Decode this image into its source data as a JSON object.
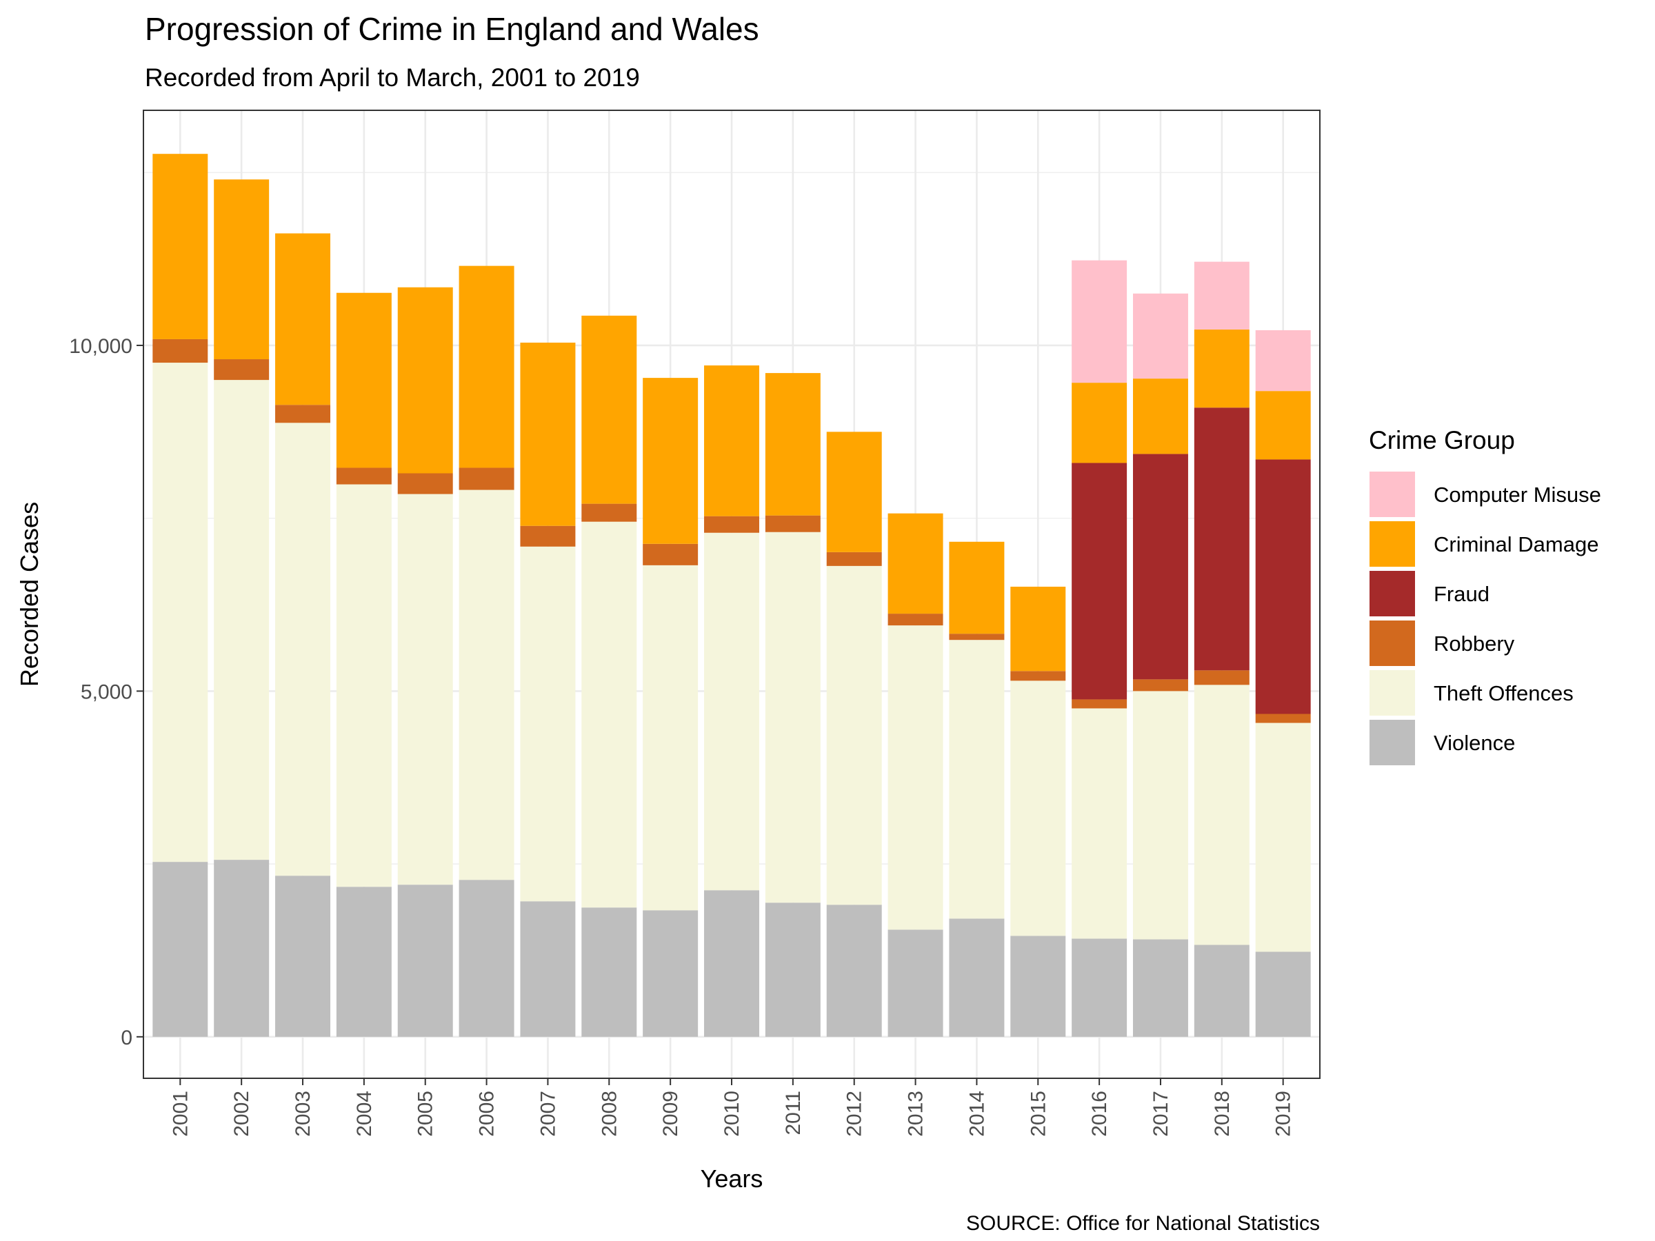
{
  "chart_data": {
    "type": "bar",
    "stacked": true,
    "title": "Progression of Crime in England and Wales",
    "subtitle": "Recorded from April to March, 2001 to 2019",
    "caption": "SOURCE: Office for National Statistics",
    "xlabel": "Years",
    "ylabel": "Recorded Cases",
    "ylim": [
      -600,
      13400
    ],
    "yticks": [
      0,
      5000,
      10000
    ],
    "ytick_labels": [
      "0",
      "5,000",
      "10,000"
    ],
    "grid": true,
    "legend": {
      "title": "Crime Group",
      "position": "right"
    },
    "categories": [
      "2001",
      "2002",
      "2003",
      "2004",
      "2005",
      "2006",
      "2007",
      "2008",
      "2009",
      "2010",
      "2011",
      "2012",
      "2013",
      "2014",
      "2015",
      "2016",
      "2017",
      "2018",
      "2019"
    ],
    "series": [
      {
        "name": "Violence",
        "color": "#bebebe",
        "values": [
          2530,
          2560,
          2330,
          2170,
          2200,
          2270,
          1960,
          1870,
          1830,
          2120,
          1940,
          1910,
          1550,
          1710,
          1460,
          1420,
          1410,
          1330,
          1230
        ]
      },
      {
        "name": "Theft Offences",
        "color": "#f5f5dc",
        "values": [
          7220,
          6940,
          6550,
          5820,
          5650,
          5640,
          5130,
          5580,
          4990,
          5170,
          5360,
          4900,
          4400,
          4030,
          3690,
          3330,
          3590,
          3760,
          3310
        ]
      },
      {
        "name": "Robbery",
        "color": "#d2691e",
        "values": [
          340,
          300,
          260,
          240,
          300,
          320,
          300,
          260,
          310,
          240,
          240,
          200,
          170,
          90,
          140,
          130,
          170,
          210,
          130
        ]
      },
      {
        "name": "Fraud",
        "color": "#a52a2a",
        "values": [
          0,
          0,
          0,
          0,
          0,
          0,
          0,
          0,
          0,
          0,
          0,
          0,
          0,
          0,
          0,
          3420,
          3260,
          3800,
          3680
        ]
      },
      {
        "name": "Criminal Damage",
        "color": "#ffa500",
        "values": [
          2680,
          2600,
          2480,
          2530,
          2690,
          2920,
          2650,
          2720,
          2400,
          2180,
          2060,
          1740,
          1450,
          1330,
          1220,
          1160,
          1090,
          1130,
          990
        ]
      },
      {
        "name": "Computer Misuse",
        "color": "#ffc0cb",
        "values": [
          0,
          0,
          0,
          0,
          0,
          0,
          0,
          0,
          0,
          0,
          0,
          0,
          0,
          0,
          0,
          1770,
          1230,
          980,
          880
        ]
      }
    ],
    "legend_order": [
      "Computer Misuse",
      "Criminal Damage",
      "Fraud",
      "Robbery",
      "Theft Offences",
      "Violence"
    ]
  }
}
